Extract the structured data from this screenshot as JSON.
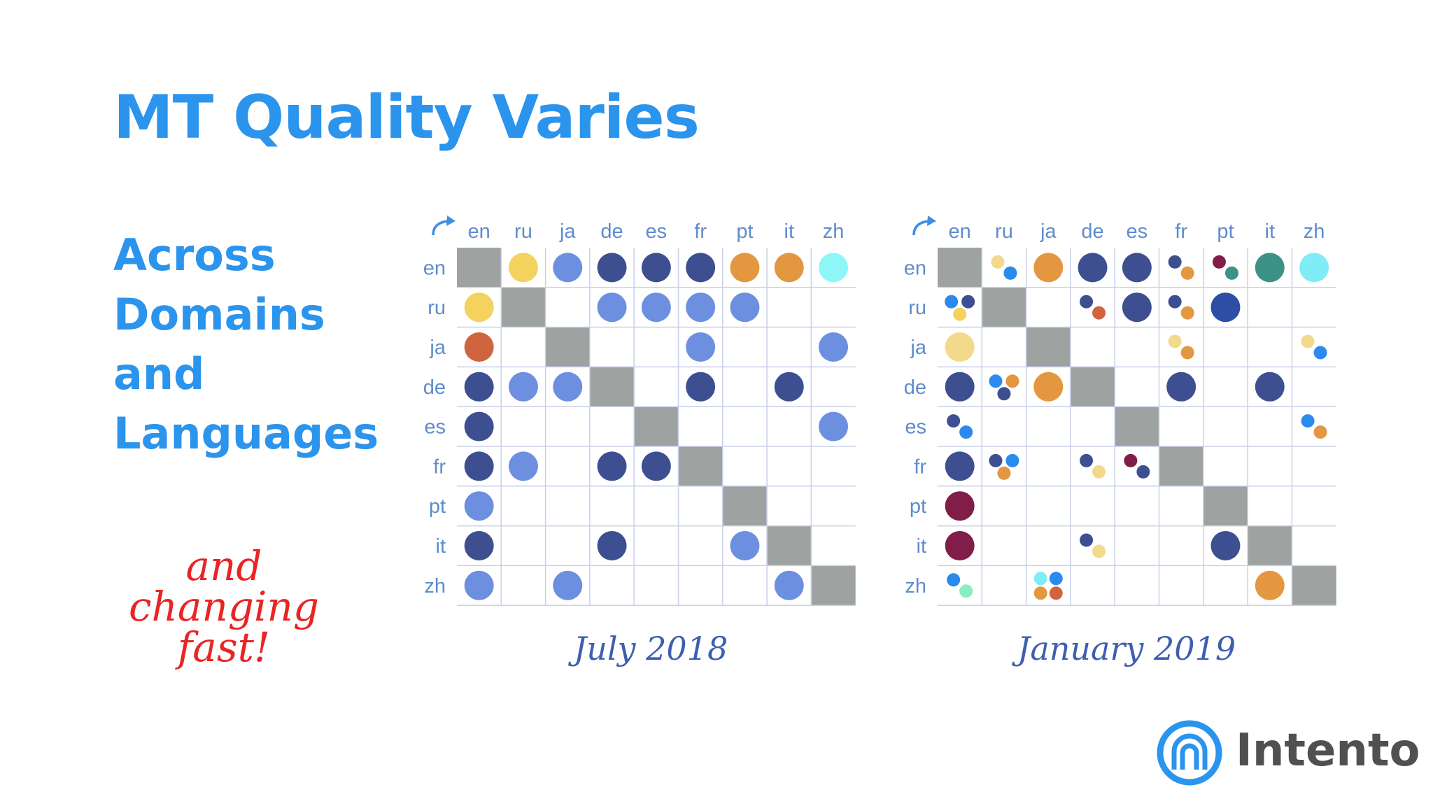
{
  "title": "MT Quality Varies",
  "subtitle_lines": [
    "Across",
    "Domains",
    "and",
    "Languages"
  ],
  "handwritten_lines": [
    "and",
    "changing",
    "fast!"
  ],
  "logo_text": "Intento",
  "colors": {
    "title_blue": "#2b94ec",
    "diagonal": "#9ea2a0",
    "grid": "#c9d0ea",
    "label": "#5f8ccc",
    "caption": "#3e5fb0",
    "handwriting": "#ea2424",
    "p1": "#3d4f91",
    "p2": "#6d8fe0",
    "p3": "#f3d35d",
    "p4": "#e39741",
    "p5": "#8df7f8",
    "p6": "#d0643e",
    "p7": "#2b8aee",
    "p8": "#801d49",
    "p9": "#3c9284",
    "p10": "#87eec0",
    "p11": "#7fedf5",
    "p12": "#2d4ea4",
    "p13": "#f2d98b"
  },
  "chart_data": [
    {
      "type": "matrix",
      "caption": "July 2018",
      "columns": [
        "en",
        "ru",
        "ja",
        "de",
        "es",
        "fr",
        "pt",
        "it",
        "zh"
      ],
      "rows": [
        "en",
        "ru",
        "ja",
        "de",
        "es",
        "fr",
        "pt",
        "it",
        "zh"
      ],
      "cells": [
        {
          "row": "en",
          "col": "ru",
          "dots": [
            "p3"
          ]
        },
        {
          "row": "en",
          "col": "ja",
          "dots": [
            "p2"
          ]
        },
        {
          "row": "en",
          "col": "de",
          "dots": [
            "p1"
          ]
        },
        {
          "row": "en",
          "col": "es",
          "dots": [
            "p1"
          ]
        },
        {
          "row": "en",
          "col": "fr",
          "dots": [
            "p1"
          ]
        },
        {
          "row": "en",
          "col": "pt",
          "dots": [
            "p4"
          ]
        },
        {
          "row": "en",
          "col": "it",
          "dots": [
            "p4"
          ]
        },
        {
          "row": "en",
          "col": "zh",
          "dots": [
            "p5"
          ]
        },
        {
          "row": "ru",
          "col": "en",
          "dots": [
            "p3"
          ]
        },
        {
          "row": "ru",
          "col": "de",
          "dots": [
            "p2"
          ]
        },
        {
          "row": "ru",
          "col": "es",
          "dots": [
            "p2"
          ]
        },
        {
          "row": "ru",
          "col": "fr",
          "dots": [
            "p2"
          ]
        },
        {
          "row": "ru",
          "col": "pt",
          "dots": [
            "p2"
          ]
        },
        {
          "row": "ja",
          "col": "en",
          "dots": [
            "p6"
          ]
        },
        {
          "row": "ja",
          "col": "fr",
          "dots": [
            "p2"
          ]
        },
        {
          "row": "ja",
          "col": "zh",
          "dots": [
            "p2"
          ]
        },
        {
          "row": "de",
          "col": "en",
          "dots": [
            "p1"
          ]
        },
        {
          "row": "de",
          "col": "ru",
          "dots": [
            "p2"
          ]
        },
        {
          "row": "de",
          "col": "ja",
          "dots": [
            "p2"
          ]
        },
        {
          "row": "de",
          "col": "fr",
          "dots": [
            "p1"
          ]
        },
        {
          "row": "de",
          "col": "it",
          "dots": [
            "p1"
          ]
        },
        {
          "row": "es",
          "col": "en",
          "dots": [
            "p1"
          ]
        },
        {
          "row": "es",
          "col": "zh",
          "dots": [
            "p2"
          ]
        },
        {
          "row": "fr",
          "col": "en",
          "dots": [
            "p1"
          ]
        },
        {
          "row": "fr",
          "col": "ru",
          "dots": [
            "p2"
          ]
        },
        {
          "row": "fr",
          "col": "de",
          "dots": [
            "p1"
          ]
        },
        {
          "row": "fr",
          "col": "es",
          "dots": [
            "p1"
          ]
        },
        {
          "row": "pt",
          "col": "en",
          "dots": [
            "p2"
          ]
        },
        {
          "row": "it",
          "col": "en",
          "dots": [
            "p1"
          ]
        },
        {
          "row": "it",
          "col": "de",
          "dots": [
            "p1"
          ]
        },
        {
          "row": "it",
          "col": "pt",
          "dots": [
            "p2"
          ]
        },
        {
          "row": "zh",
          "col": "en",
          "dots": [
            "p2"
          ]
        },
        {
          "row": "zh",
          "col": "ja",
          "dots": [
            "p2"
          ]
        },
        {
          "row": "zh",
          "col": "it",
          "dots": [
            "p2"
          ]
        }
      ]
    },
    {
      "type": "matrix",
      "caption": "January 2019",
      "columns": [
        "en",
        "ru",
        "ja",
        "de",
        "es",
        "fr",
        "pt",
        "it",
        "zh"
      ],
      "rows": [
        "en",
        "ru",
        "ja",
        "de",
        "es",
        "fr",
        "pt",
        "it",
        "zh"
      ],
      "cells": [
        {
          "row": "en",
          "col": "ru",
          "dots": [
            "p13",
            "p7"
          ]
        },
        {
          "row": "en",
          "col": "ja",
          "dots": [
            "p4"
          ]
        },
        {
          "row": "en",
          "col": "de",
          "dots": [
            "p1"
          ]
        },
        {
          "row": "en",
          "col": "es",
          "dots": [
            "p1"
          ]
        },
        {
          "row": "en",
          "col": "fr",
          "dots": [
            "p1",
            "p4"
          ]
        },
        {
          "row": "en",
          "col": "pt",
          "dots": [
            "p8",
            "p9"
          ]
        },
        {
          "row": "en",
          "col": "it",
          "dots": [
            "p9"
          ]
        },
        {
          "row": "en",
          "col": "zh",
          "dots": [
            "p11"
          ]
        },
        {
          "row": "ru",
          "col": "en",
          "dots": [
            "p7",
            "p1",
            "p3"
          ]
        },
        {
          "row": "ru",
          "col": "de",
          "dots": [
            "p1",
            "p6"
          ]
        },
        {
          "row": "ru",
          "col": "es",
          "dots": [
            "p1"
          ]
        },
        {
          "row": "ru",
          "col": "fr",
          "dots": [
            "p1",
            "p4"
          ]
        },
        {
          "row": "ru",
          "col": "pt",
          "dots": [
            "p12"
          ]
        },
        {
          "row": "ja",
          "col": "en",
          "dots": [
            "p13"
          ]
        },
        {
          "row": "ja",
          "col": "fr",
          "dots": [
            "p13",
            "p4"
          ]
        },
        {
          "row": "ja",
          "col": "zh",
          "dots": [
            "p13",
            "p7"
          ]
        },
        {
          "row": "de",
          "col": "en",
          "dots": [
            "p1"
          ]
        },
        {
          "row": "de",
          "col": "ru",
          "dots": [
            "p7",
            "p4",
            "p1"
          ]
        },
        {
          "row": "de",
          "col": "ja",
          "dots": [
            "p4"
          ]
        },
        {
          "row": "de",
          "col": "fr",
          "dots": [
            "p1"
          ]
        },
        {
          "row": "de",
          "col": "it",
          "dots": [
            "p1"
          ]
        },
        {
          "row": "es",
          "col": "en",
          "dots": [
            "p1",
            "p7"
          ]
        },
        {
          "row": "es",
          "col": "zh",
          "dots": [
            "p7",
            "p4"
          ]
        },
        {
          "row": "fr",
          "col": "en",
          "dots": [
            "p1"
          ]
        },
        {
          "row": "fr",
          "col": "ru",
          "dots": [
            "p1",
            "p7",
            "p4"
          ]
        },
        {
          "row": "fr",
          "col": "de",
          "dots": [
            "p1",
            "p13"
          ]
        },
        {
          "row": "fr",
          "col": "es",
          "dots": [
            "p8",
            "p1"
          ]
        },
        {
          "row": "pt",
          "col": "en",
          "dots": [
            "p8"
          ]
        },
        {
          "row": "it",
          "col": "en",
          "dots": [
            "p8"
          ]
        },
        {
          "row": "it",
          "col": "de",
          "dots": [
            "p1",
            "p13"
          ]
        },
        {
          "row": "it",
          "col": "pt",
          "dots": [
            "p1"
          ]
        },
        {
          "row": "zh",
          "col": "en",
          "dots": [
            "p7",
            "p10"
          ]
        },
        {
          "row": "zh",
          "col": "ja",
          "dots": [
            "p11",
            "p7",
            "p4",
            "p6"
          ]
        },
        {
          "row": "zh",
          "col": "it",
          "dots": [
            "p4"
          ]
        }
      ]
    }
  ]
}
